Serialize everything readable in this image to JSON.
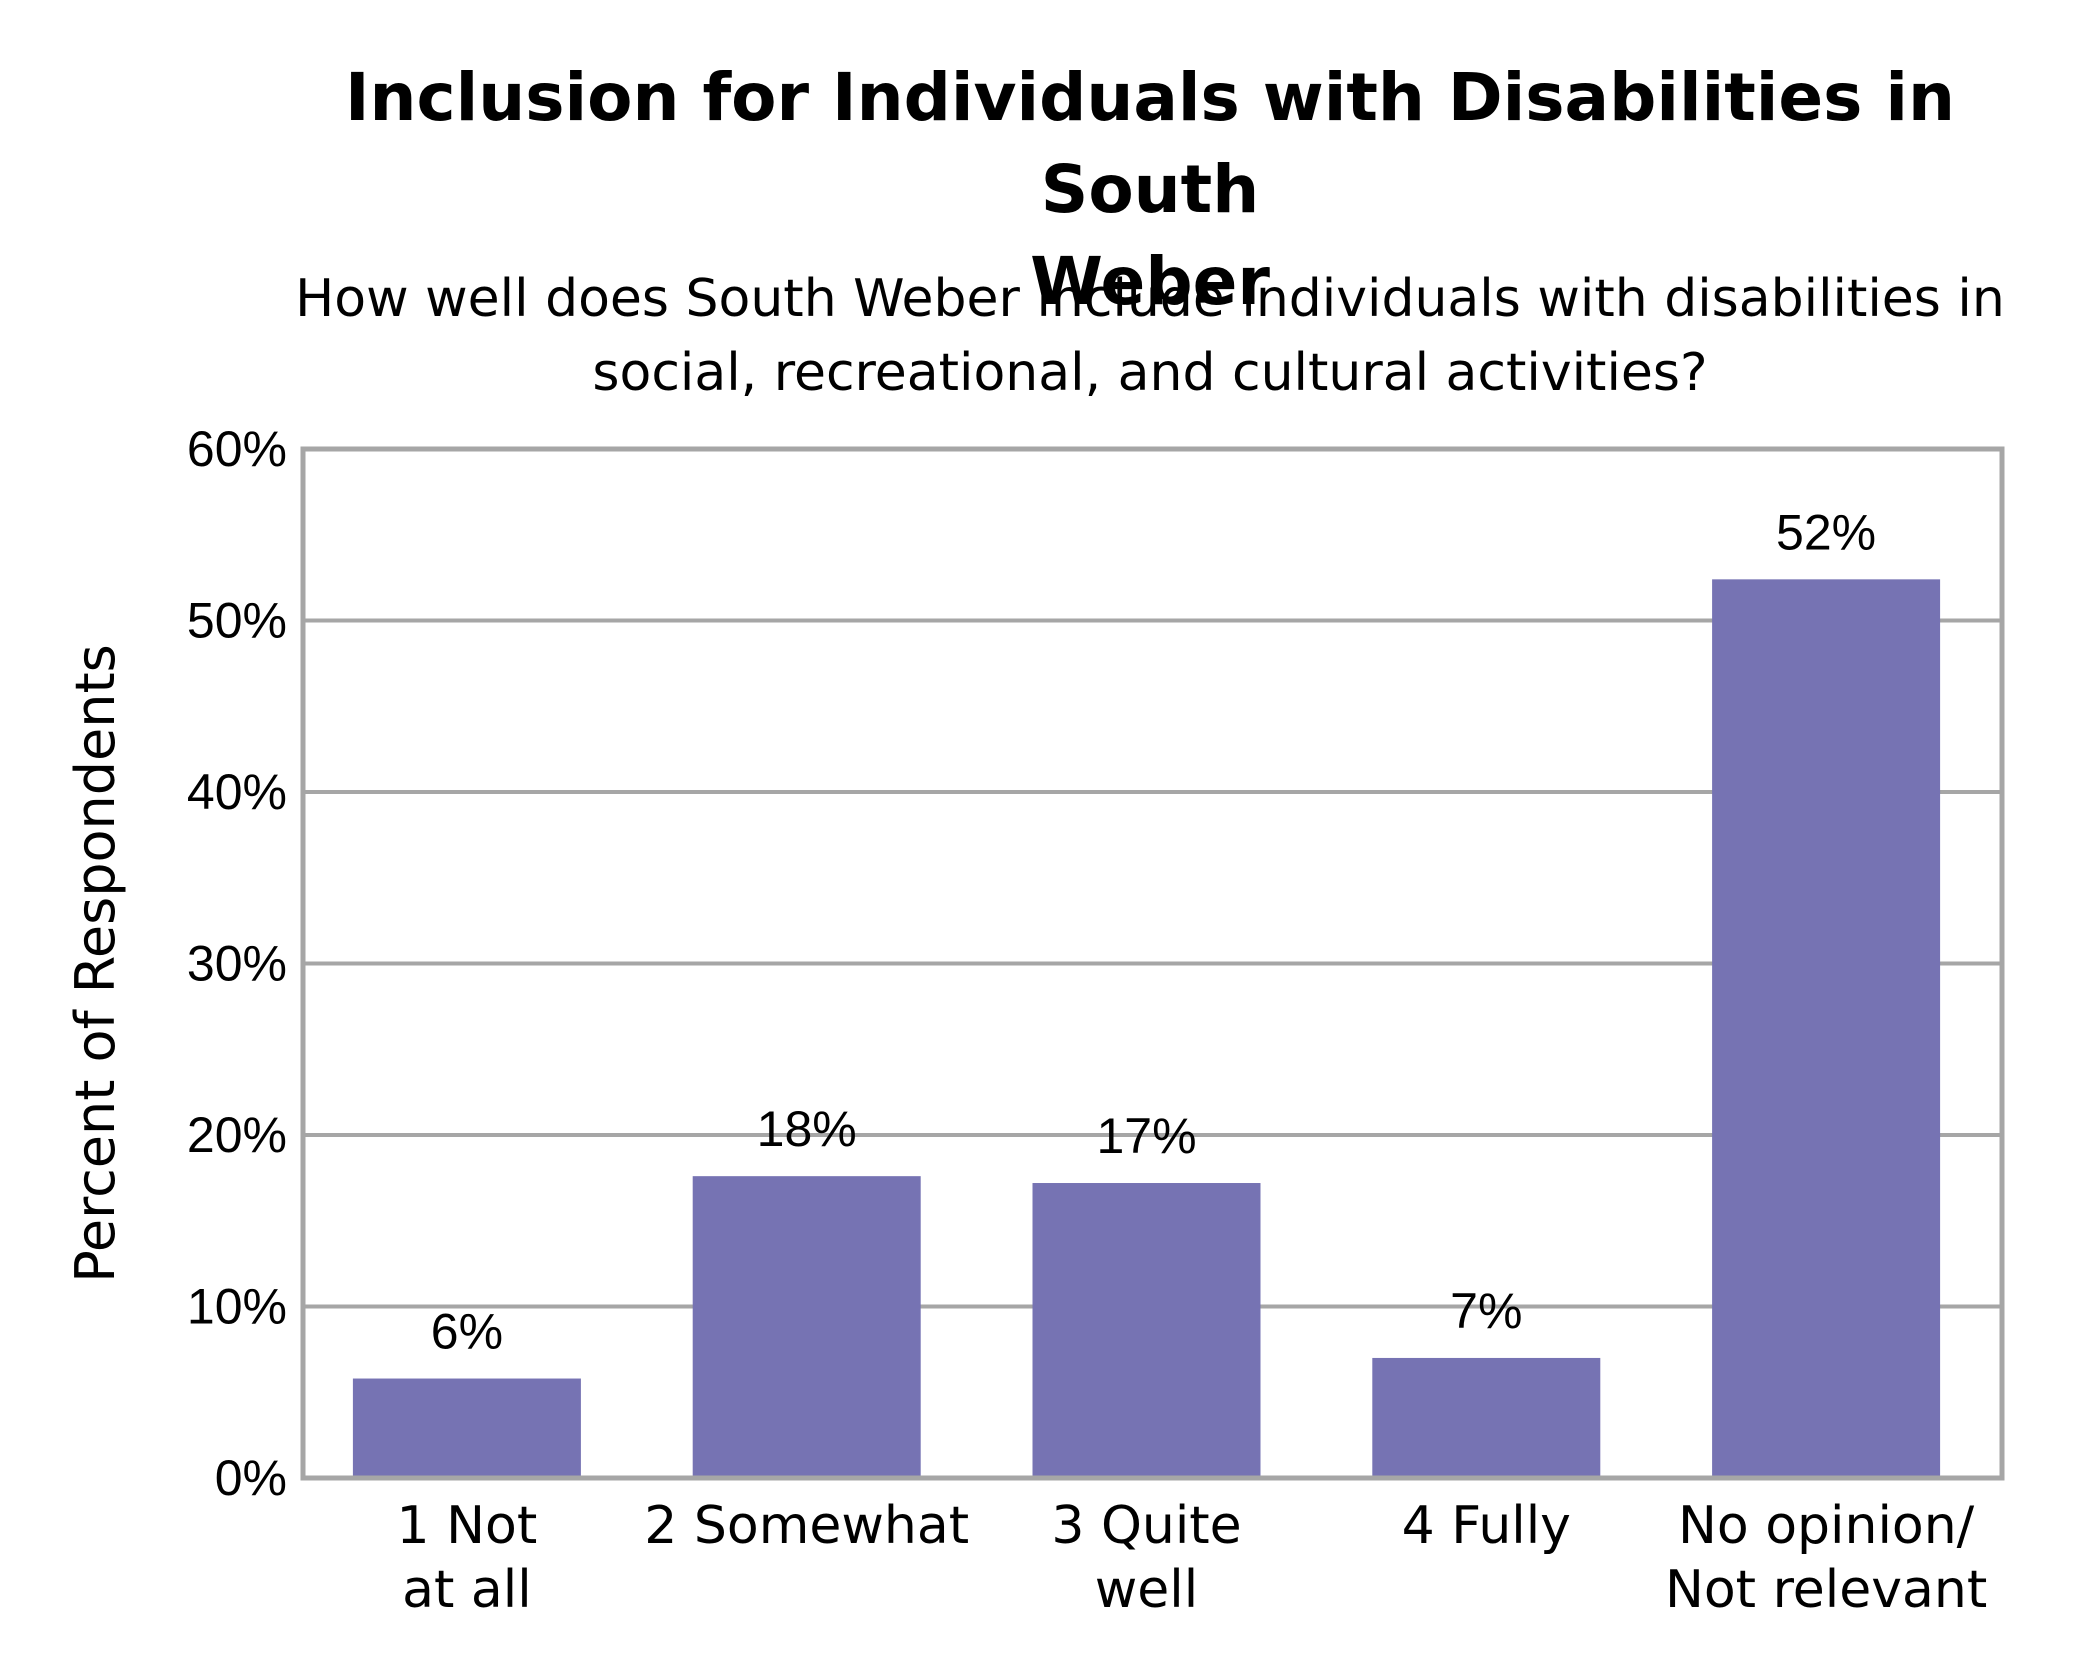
{
  "chart_data": {
    "type": "bar",
    "title_lines": [
      "Inclusion for Individuals with Disabilities in South",
      "Weber"
    ],
    "subtitle_lines": [
      "How well does South Weber include individuals with disabilities in",
      "social, recreational, and cultural activities?"
    ],
    "ylabel": "Percent of Respondents",
    "xlabel": "",
    "ylim": [
      0,
      60
    ],
    "yticks": [
      0,
      10,
      20,
      30,
      40,
      50,
      60
    ],
    "ytick_labels": [
      "0%",
      "10%",
      "20%",
      "30%",
      "40%",
      "50%",
      "60%"
    ],
    "categories": [
      [
        "1 Not",
        "at all"
      ],
      [
        "2 Somewhat"
      ],
      [
        "3 Quite",
        "well"
      ],
      [
        "4 Fully"
      ],
      [
        "No opinion/",
        "Not relevant"
      ]
    ],
    "values": [
      5.8,
      17.6,
      17.2,
      7.0,
      52.4
    ],
    "data_labels": [
      "6%",
      "18%",
      "17%",
      "7%",
      "52%"
    ],
    "bar_color": "#7673b3",
    "grid": true,
    "legend": "none"
  }
}
